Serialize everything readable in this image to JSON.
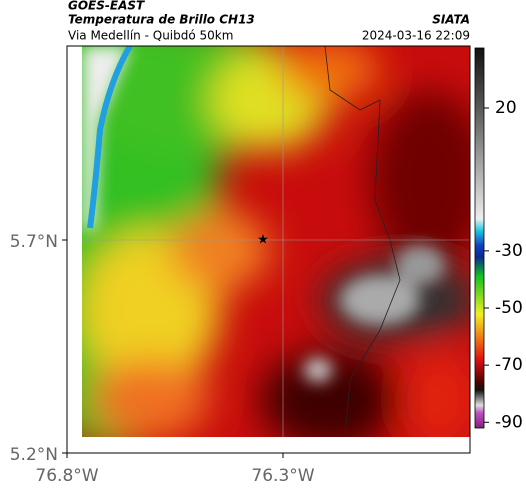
{
  "header": {
    "source": "GOES-EAST",
    "title": "Temperatura de Brillo CH13",
    "subtitle": "Via Medellín - Quibdó 50km",
    "agency": "SIATA",
    "timestamp": "2024-03-16 22:09"
  },
  "axes": {
    "y_labels": [
      "5.7°N",
      "5.2°N"
    ],
    "x_labels": [
      "76.8°W",
      "76.3°W"
    ]
  },
  "colorbar": {
    "ticks": [
      20,
      -30,
      -50,
      -70,
      -90
    ],
    "lim": [
      -92,
      41
    ]
  }
}
